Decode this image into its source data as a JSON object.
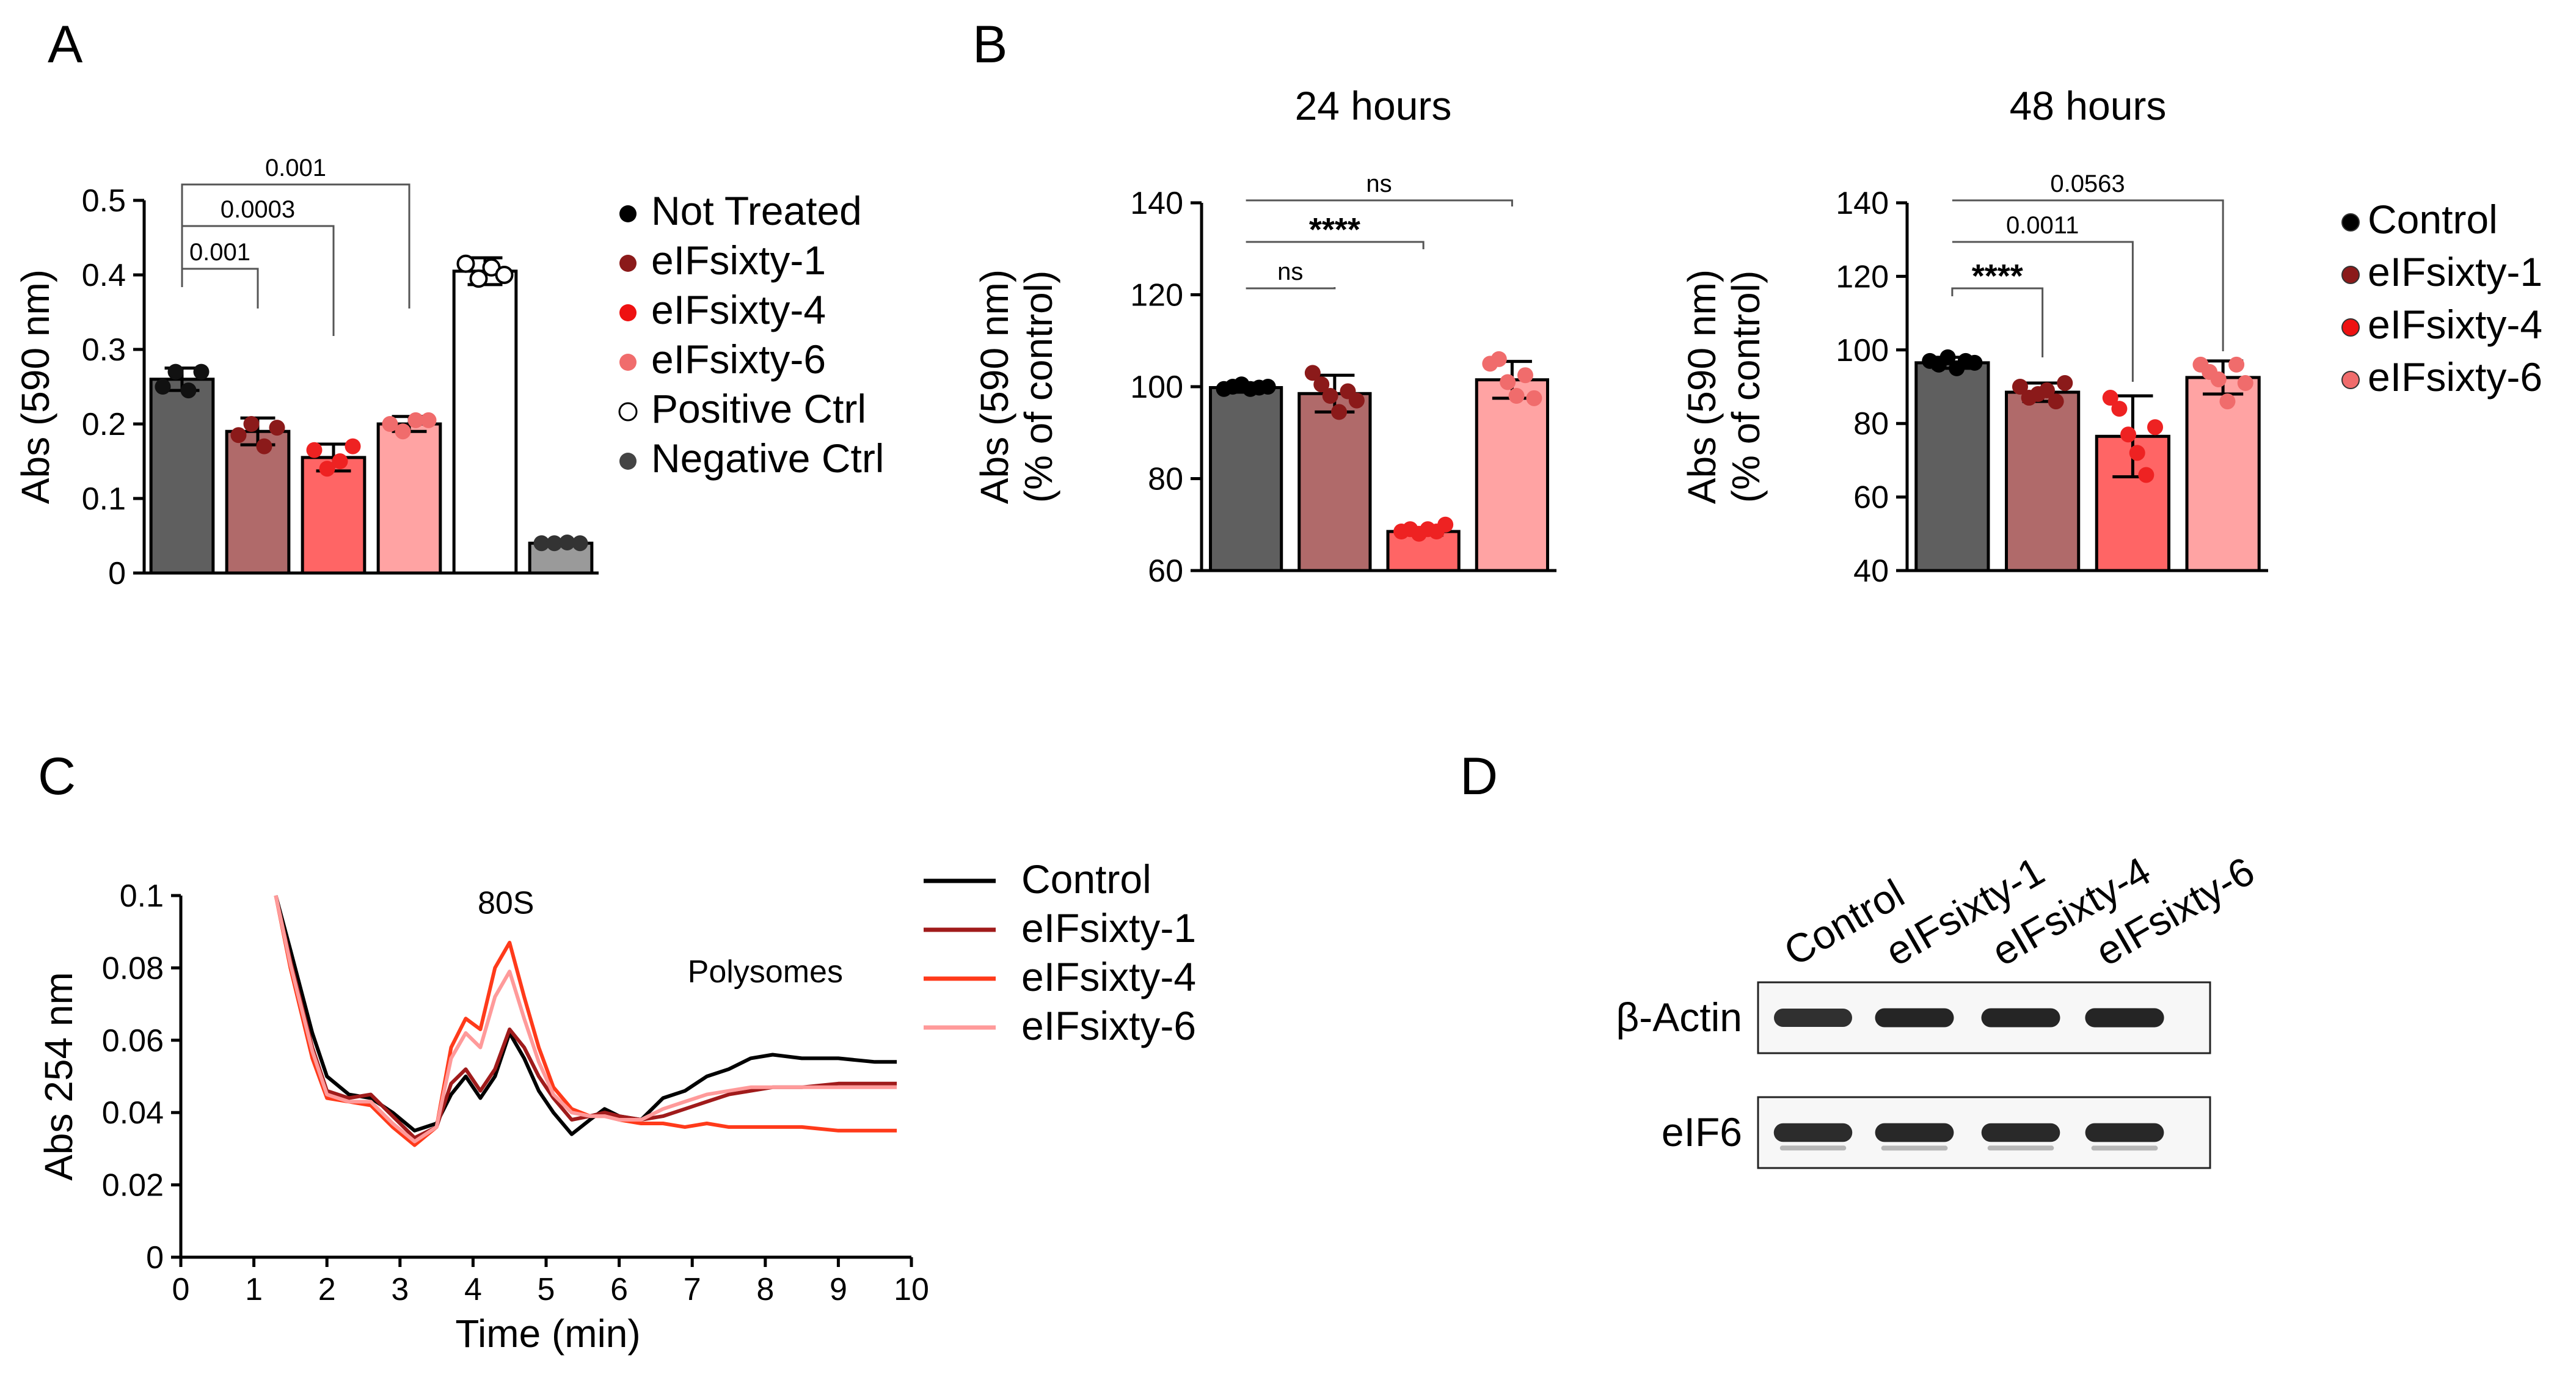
{
  "panels": {
    "A": "A",
    "B": "B",
    "C": "C",
    "D": "D"
  },
  "chart_data": [
    {
      "id": "A",
      "type": "bar",
      "title": "",
      "xlabel": "",
      "ylabel": "Abs (590 nm)",
      "ylim": [
        0,
        0.5
      ],
      "yticks": [
        0,
        0.1,
        0.2,
        0.3,
        0.4,
        0.5
      ],
      "ytick_labels": [
        "0",
        "0.1",
        "0.2",
        "0.3",
        "0.4",
        "0.5"
      ],
      "categories": [
        "Not Treated",
        "eIFsixty-1",
        "eIFsixty-4",
        "eIFsixty-6",
        "Positive Ctrl",
        "Negative Ctrl"
      ],
      "values": [
        0.26,
        0.19,
        0.155,
        0.2,
        0.405,
        0.04
      ],
      "errors": [
        0.015,
        0.018,
        0.018,
        0.01,
        0.018,
        0.003
      ],
      "points": [
        [
          0.25,
          0.27,
          0.245,
          0.27
        ],
        [
          0.185,
          0.2,
          0.17,
          0.195
        ],
        [
          0.165,
          0.14,
          0.15,
          0.17
        ],
        [
          0.2,
          0.19,
          0.205,
          0.205
        ],
        [
          0.415,
          0.395,
          0.41,
          0.4
        ],
        [
          0.04,
          0.04,
          0.041,
          0.04
        ]
      ],
      "fill_colors": [
        "#5f5f5f",
        "#b06a6a",
        "#ff6565",
        "#ffa3a3",
        "#ffffff",
        "#9a9a9a"
      ],
      "point_colors": [
        "#111111",
        "#8b1a1a",
        "#ee2222",
        "#f06c6c",
        "#ffffff",
        "#333333"
      ],
      "legend": {
        "position": "right",
        "entries": [
          {
            "label": "Not Treated",
            "color": "#000000"
          },
          {
            "label": "eIFsixty-1",
            "color": "#8b1a1a"
          },
          {
            "label": "eIFsixty-4",
            "color": "#ee1111"
          },
          {
            "label": "eIFsixty-6",
            "color": "#f06c6c"
          },
          {
            "label": "Positive Ctrl",
            "color": "#ffffff"
          },
          {
            "label": "Negative Ctrl",
            "color": "#444444"
          }
        ]
      },
      "comparisons": [
        {
          "from": 0,
          "to": 1,
          "label": "0.001"
        },
        {
          "from": 0,
          "to": 2,
          "label": "0.0003"
        },
        {
          "from": 0,
          "to": 3,
          "label": "0.001"
        }
      ]
    },
    {
      "id": "B1",
      "type": "bar",
      "title": "24 hours",
      "xlabel": "",
      "ylabel": "Abs (590 nm)\n(% of control)",
      "ylabel_lines": [
        "Abs (590 nm)",
        "(% of control)"
      ],
      "ylim": [
        60,
        140
      ],
      "yticks": [
        60,
        80,
        100,
        120,
        140
      ],
      "ytick_labels": [
        "60",
        "80",
        "100",
        "120",
        "140"
      ],
      "categories": [
        "Control",
        "eIFsixty-1",
        "eIFsixty-4",
        "eIFsixty-6"
      ],
      "values": [
        99.8,
        98.5,
        68.5,
        101.5
      ],
      "errors": [
        1.0,
        4.0,
        0.8,
        4.0
      ],
      "points": [
        [
          99.5,
          100,
          100.5,
          99.5,
          99.8,
          100
        ],
        [
          103,
          100.5,
          98,
          94.5,
          99,
          97
        ],
        [
          68.5,
          69,
          68,
          69,
          68.5,
          70
        ],
        [
          105,
          106,
          101,
          98,
          102.5,
          97.5
        ]
      ],
      "fill_colors": [
        "#5f5f5f",
        "#b06a6a",
        "#ff6565",
        "#ffa3a3"
      ],
      "point_colors": [
        "#000000",
        "#8b1a1a",
        "#ee2222",
        "#f06c6c"
      ],
      "comparisons": [
        {
          "from": 0,
          "to": 1,
          "label": "ns"
        },
        {
          "from": 0,
          "to": 2,
          "label": "****"
        },
        {
          "from": 0,
          "to": 3,
          "label": "ns"
        }
      ]
    },
    {
      "id": "B2",
      "type": "bar",
      "title": "48 hours",
      "xlabel": "",
      "ylabel": "Abs (590 nm)\n(% of control)",
      "ylabel_lines": [
        "Abs (590 nm)",
        "(% of control)"
      ],
      "ylim": [
        40,
        140
      ],
      "yticks": [
        40,
        60,
        80,
        100,
        120,
        140
      ],
      "ytick_labels": [
        "40",
        "60",
        "80",
        "100",
        "120",
        "140"
      ],
      "categories": [
        "Control",
        "eIFsixty-1",
        "eIFsixty-4",
        "eIFsixty-6"
      ],
      "values": [
        96.5,
        88.5,
        76.5,
        92.5
      ],
      "errors": [
        1.5,
        2.5,
        11.0,
        4.5
      ],
      "points": [
        [
          97,
          96,
          98,
          95,
          97,
          96.5
        ],
        [
          90,
          87,
          88,
          89,
          86,
          91
        ],
        [
          87,
          84,
          77,
          72,
          66,
          79
        ],
        [
          96,
          94,
          92,
          86,
          96,
          91
        ]
      ],
      "fill_colors": [
        "#5f5f5f",
        "#b06a6a",
        "#ff6565",
        "#ffa3a3"
      ],
      "point_colors": [
        "#000000",
        "#8b1a1a",
        "#ee2222",
        "#f06c6c"
      ],
      "legend": {
        "position": "right",
        "entries": [
          {
            "label": "Control",
            "color": "#000000"
          },
          {
            "label": "eIFsixty-1",
            "color": "#8b1a1a"
          },
          {
            "label": "eIFsixty-4",
            "color": "#ee1111"
          },
          {
            "label": "eIFsixty-6",
            "color": "#f06c6c"
          }
        ]
      },
      "comparisons": [
        {
          "from": 0,
          "to": 1,
          "label": "****"
        },
        {
          "from": 0,
          "to": 2,
          "label": "0.0011"
        },
        {
          "from": 0,
          "to": 3,
          "label": "0.0563"
        }
      ]
    },
    {
      "id": "C",
      "type": "line",
      "title": "",
      "xlabel": "Time (min)",
      "ylabel": "Abs 254 nm",
      "xlim": [
        0,
        10
      ],
      "ylim": [
        0,
        0.1
      ],
      "xticks": [
        0,
        1,
        2,
        3,
        4,
        5,
        6,
        7,
        8,
        9,
        10
      ],
      "xtick_labels": [
        "0",
        "1",
        "2",
        "3",
        "4",
        "5",
        "6",
        "7",
        "8",
        "9",
        "10"
      ],
      "yticks": [
        0,
        0.02,
        0.04,
        0.06,
        0.08,
        0.1
      ],
      "ytick_labels": [
        "0",
        "0.02",
        "0.04",
        "0.06",
        "0.08",
        "0.1"
      ],
      "annotations": [
        {
          "text": "80S",
          "x": 4.45,
          "y": 0.095
        },
        {
          "text": "Polysomes",
          "x": 8.0,
          "y": 0.076
        }
      ],
      "series": [
        {
          "name": "Control",
          "color": "#000000",
          "x": [
            1.3,
            1.5,
            1.8,
            2.0,
            2.3,
            2.6,
            2.9,
            3.2,
            3.5,
            3.7,
            3.9,
            4.1,
            4.3,
            4.5,
            4.7,
            4.9,
            5.1,
            5.35,
            5.6,
            5.8,
            6.0,
            6.3,
            6.6,
            6.9,
            7.2,
            7.5,
            7.8,
            8.1,
            8.5,
            9.0,
            9.5,
            9.8
          ],
          "y": [
            0.1,
            0.085,
            0.062,
            0.05,
            0.045,
            0.044,
            0.04,
            0.035,
            0.037,
            0.045,
            0.05,
            0.044,
            0.05,
            0.062,
            0.055,
            0.046,
            0.04,
            0.034,
            0.038,
            0.041,
            0.039,
            0.038,
            0.044,
            0.046,
            0.05,
            0.052,
            0.055,
            0.056,
            0.055,
            0.055,
            0.054,
            0.054
          ]
        },
        {
          "name": "eIFsixty-1",
          "color": "#a01b1b",
          "x": [
            1.3,
            1.5,
            1.8,
            2.0,
            2.3,
            2.6,
            2.9,
            3.2,
            3.5,
            3.7,
            3.9,
            4.1,
            4.3,
            4.5,
            4.7,
            4.9,
            5.1,
            5.35,
            5.6,
            5.8,
            6.0,
            6.3,
            6.6,
            6.9,
            7.2,
            7.5,
            7.8,
            8.1,
            8.5,
            9.0,
            9.5,
            9.8
          ],
          "y": [
            0.1,
            0.082,
            0.058,
            0.046,
            0.044,
            0.045,
            0.039,
            0.033,
            0.036,
            0.048,
            0.052,
            0.046,
            0.052,
            0.063,
            0.058,
            0.05,
            0.044,
            0.038,
            0.039,
            0.04,
            0.039,
            0.038,
            0.039,
            0.041,
            0.043,
            0.045,
            0.046,
            0.047,
            0.047,
            0.048,
            0.048,
            0.048
          ]
        },
        {
          "name": "eIFsixty-4",
          "color": "#ff3a1a",
          "x": [
            1.3,
            1.5,
            1.8,
            2.0,
            2.3,
            2.6,
            2.9,
            3.2,
            3.5,
            3.7,
            3.9,
            4.1,
            4.3,
            4.5,
            4.7,
            4.9,
            5.1,
            5.35,
            5.6,
            5.8,
            6.0,
            6.3,
            6.6,
            6.9,
            7.2,
            7.5,
            7.8,
            8.1,
            8.5,
            9.0,
            9.5,
            9.8
          ],
          "y": [
            0.1,
            0.08,
            0.055,
            0.044,
            0.043,
            0.042,
            0.036,
            0.031,
            0.036,
            0.058,
            0.066,
            0.063,
            0.08,
            0.087,
            0.072,
            0.058,
            0.047,
            0.041,
            0.039,
            0.039,
            0.038,
            0.037,
            0.037,
            0.036,
            0.037,
            0.036,
            0.036,
            0.036,
            0.036,
            0.035,
            0.035,
            0.035
          ]
        },
        {
          "name": "eIFsixty-6",
          "color": "#ff9a9a",
          "x": [
            1.3,
            1.5,
            1.8,
            2.0,
            2.3,
            2.6,
            2.9,
            3.2,
            3.5,
            3.7,
            3.9,
            4.1,
            4.3,
            4.5,
            4.7,
            4.9,
            5.1,
            5.35,
            5.6,
            5.8,
            6.0,
            6.3,
            6.6,
            6.9,
            7.2,
            7.5,
            7.8,
            8.1,
            8.5,
            9.0,
            9.5,
            9.8
          ],
          "y": [
            0.1,
            0.081,
            0.057,
            0.045,
            0.043,
            0.043,
            0.037,
            0.032,
            0.036,
            0.055,
            0.062,
            0.058,
            0.072,
            0.079,
            0.066,
            0.054,
            0.045,
            0.04,
            0.039,
            0.039,
            0.038,
            0.038,
            0.041,
            0.043,
            0.045,
            0.046,
            0.047,
            0.047,
            0.047,
            0.047,
            0.047,
            0.047
          ]
        }
      ],
      "legend": {
        "position": "top-right",
        "entries": [
          {
            "label": "Control",
            "color": "#000000"
          },
          {
            "label": "eIFsixty-1",
            "color": "#a01b1b"
          },
          {
            "label": "eIFsixty-4",
            "color": "#ff3a1a"
          },
          {
            "label": "eIFsixty-6",
            "color": "#ff9a9a"
          }
        ]
      }
    },
    {
      "id": "D",
      "type": "table",
      "title": "",
      "lanes": [
        "Control",
        "eIFsixty-1",
        "eIFsixty-4",
        "eIFsixty-6"
      ],
      "blots": [
        {
          "label": "β-Actin",
          "intensities": [
            0.8,
            0.9,
            0.9,
            0.92
          ]
        },
        {
          "label": "eIF6",
          "intensities": [
            0.85,
            0.88,
            0.86,
            0.88
          ]
        }
      ]
    }
  ]
}
